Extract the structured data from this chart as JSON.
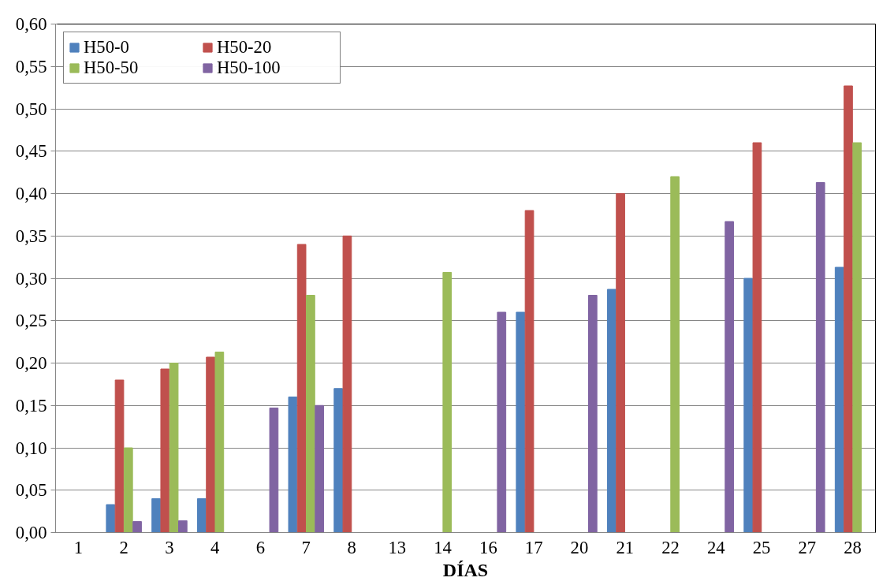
{
  "chart_data": {
    "type": "bar",
    "xlabel": "DÍAS",
    "categories": [
      "1",
      "2",
      "3",
      "4",
      "6",
      "7",
      "8",
      "13",
      "14",
      "16",
      "17",
      "20",
      "21",
      "22",
      "24",
      "25",
      "27",
      "28"
    ],
    "series": [
      {
        "name": "H50-0",
        "color": "#4f81bd",
        "values": [
          null,
          0.033,
          0.04,
          0.04,
          null,
          0.16,
          0.17,
          null,
          null,
          null,
          0.26,
          null,
          0.287,
          null,
          null,
          0.3,
          null,
          0.313
        ]
      },
      {
        "name": "H50-20",
        "color": "#c0504d",
        "values": [
          null,
          0.18,
          0.193,
          0.207,
          null,
          0.34,
          0.35,
          null,
          null,
          null,
          0.38,
          null,
          0.4,
          null,
          null,
          0.46,
          null,
          0.527
        ]
      },
      {
        "name": "H50-50",
        "color": "#9bbb59",
        "values": [
          null,
          0.1,
          0.2,
          0.213,
          null,
          0.28,
          null,
          null,
          0.307,
          null,
          null,
          null,
          null,
          0.42,
          null,
          null,
          null,
          0.46
        ]
      },
      {
        "name": "H50-100",
        "color": "#8064a2",
        "values": [
          null,
          0.013,
          0.014,
          null,
          0.147,
          0.15,
          null,
          null,
          null,
          0.26,
          null,
          0.28,
          null,
          null,
          0.367,
          null,
          0.413,
          null
        ]
      }
    ],
    "ylim": [
      0,
      0.6
    ],
    "yticks": [
      {
        "value": 0,
        "label": "0,00"
      },
      {
        "value": 0.05,
        "label": "0,05"
      },
      {
        "value": 0.1,
        "label": "0,10"
      },
      {
        "value": 0.15,
        "label": "0,15"
      },
      {
        "value": 0.2,
        "label": "0,20"
      },
      {
        "value": 0.25,
        "label": "0,25"
      },
      {
        "value": 0.3,
        "label": "0,30"
      },
      {
        "value": 0.35,
        "label": "0,35"
      },
      {
        "value": 0.4,
        "label": "0,40"
      },
      {
        "value": 0.45,
        "label": "0,45"
      },
      {
        "value": 0.5,
        "label": "0,50"
      },
      {
        "value": 0.55,
        "label": "0,55"
      },
      {
        "value": 0.6,
        "label": "0,60"
      }
    ],
    "grid": "y",
    "legend": "top left"
  }
}
